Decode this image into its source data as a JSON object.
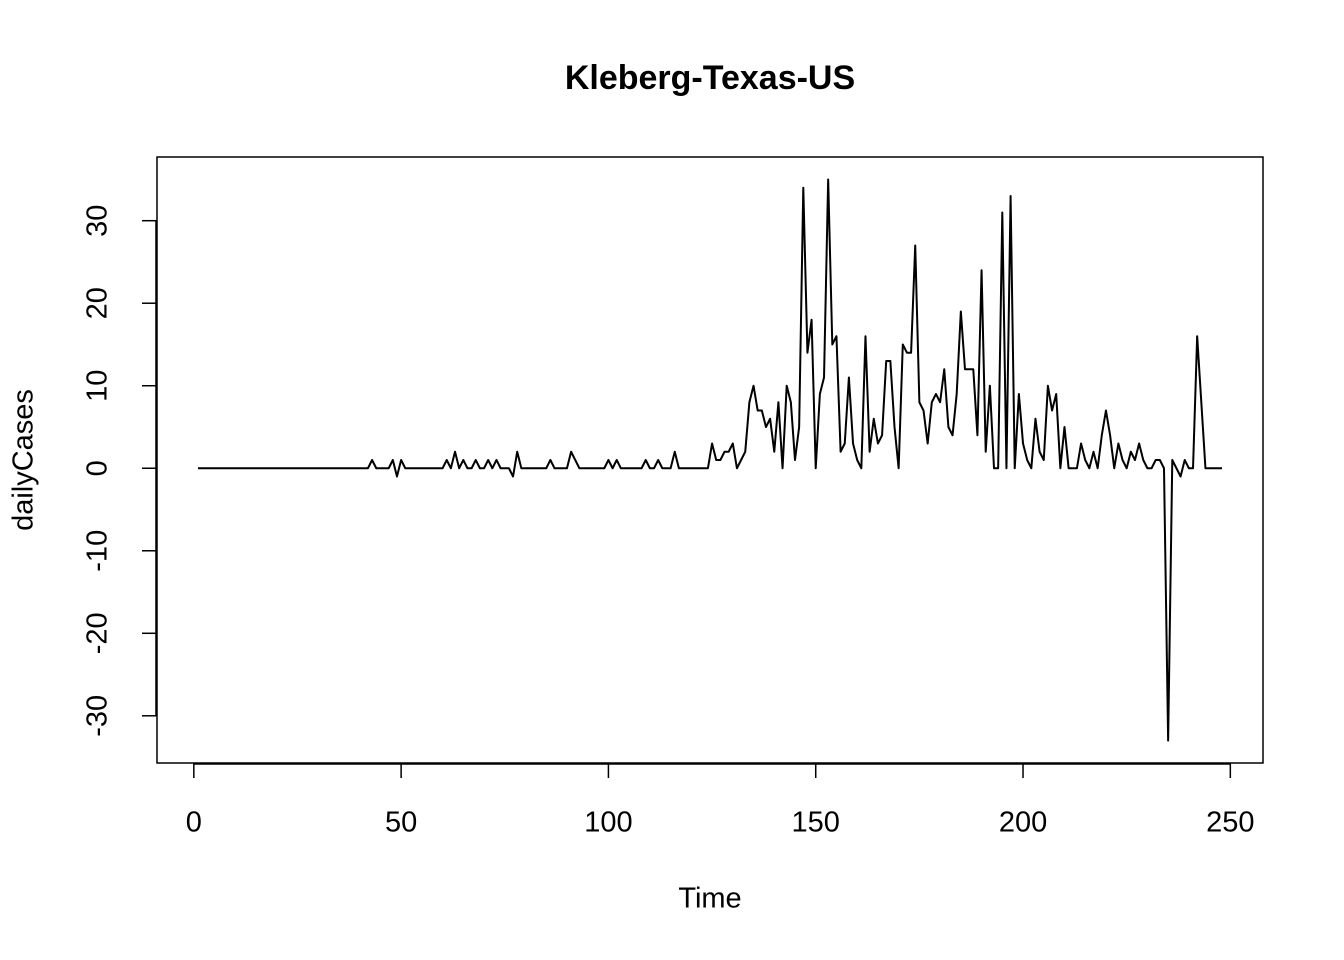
{
  "chart_data": {
    "type": "line",
    "title": "Kleberg-Texas-US",
    "xlabel": "Time",
    "ylabel": "dailyCases",
    "x": [
      1,
      2,
      3,
      4,
      5,
      6,
      7,
      8,
      9,
      10,
      11,
      12,
      13,
      14,
      15,
      16,
      17,
      18,
      19,
      20,
      21,
      22,
      23,
      24,
      25,
      26,
      27,
      28,
      29,
      30,
      31,
      32,
      33,
      34,
      35,
      36,
      37,
      38,
      39,
      40,
      41,
      42,
      43,
      44,
      45,
      46,
      47,
      48,
      49,
      50,
      51,
      52,
      53,
      54,
      55,
      56,
      57,
      58,
      59,
      60,
      61,
      62,
      63,
      64,
      65,
      66,
      67,
      68,
      69,
      70,
      71,
      72,
      73,
      74,
      75,
      76,
      77,
      78,
      79,
      80,
      81,
      82,
      83,
      84,
      85,
      86,
      87,
      88,
      89,
      90,
      91,
      92,
      93,
      94,
      95,
      96,
      97,
      98,
      99,
      100,
      101,
      102,
      103,
      104,
      105,
      106,
      107,
      108,
      109,
      110,
      111,
      112,
      113,
      114,
      115,
      116,
      117,
      118,
      119,
      120,
      121,
      122,
      123,
      124,
      125,
      126,
      127,
      128,
      129,
      130,
      131,
      132,
      133,
      134,
      135,
      136,
      137,
      138,
      139,
      140,
      141,
      142,
      143,
      144,
      145,
      146,
      147,
      148,
      149,
      150,
      151,
      152,
      153,
      154,
      155,
      156,
      157,
      158,
      159,
      160,
      161,
      162,
      163,
      164,
      165,
      166,
      167,
      168,
      169,
      170,
      171,
      172,
      173,
      174,
      175,
      176,
      177,
      178,
      179,
      180,
      181,
      182,
      183,
      184,
      185,
      186,
      187,
      188,
      189,
      190,
      191,
      192,
      193,
      194,
      195,
      196,
      197,
      198,
      199,
      200,
      201,
      202,
      203,
      204,
      205,
      206,
      207,
      208,
      209,
      210,
      211,
      212,
      213,
      214,
      215,
      216,
      217,
      218,
      219,
      220,
      221,
      222,
      223,
      224,
      225,
      226,
      227,
      228,
      229,
      230,
      231,
      232,
      233,
      234,
      235,
      236,
      237,
      238,
      239,
      240,
      241,
      242,
      243,
      244,
      245,
      246,
      247,
      248
    ],
    "series": [
      {
        "name": "dailyCases",
        "color": "#000000",
        "values": [
          0,
          0,
          0,
          0,
          0,
          0,
          0,
          0,
          0,
          0,
          0,
          0,
          0,
          0,
          0,
          0,
          0,
          0,
          0,
          0,
          0,
          0,
          0,
          0,
          0,
          0,
          0,
          0,
          0,
          0,
          0,
          0,
          0,
          0,
          0,
          0,
          0,
          0,
          0,
          0,
          0,
          0,
          1,
          0,
          0,
          0,
          0,
          1,
          -1,
          1,
          0,
          0,
          0,
          0,
          0,
          0,
          0,
          0,
          0,
          0,
          1,
          0,
          2,
          0,
          1,
          0,
          0,
          1,
          0,
          0,
          1,
          0,
          1,
          0,
          0,
          0,
          -1,
          2,
          0,
          0,
          0,
          0,
          0,
          0,
          0,
          1,
          0,
          0,
          0,
          0,
          2,
          1,
          0,
          0,
          0,
          0,
          0,
          0,
          0,
          1,
          0,
          1,
          0,
          0,
          0,
          0,
          0,
          0,
          1,
          0,
          0,
          1,
          0,
          0,
          0,
          2,
          0,
          0,
          0,
          0,
          0,
          0,
          0,
          0,
          3,
          1,
          1,
          2,
          2,
          3,
          0,
          1,
          2,
          8,
          10,
          7,
          7,
          5,
          6,
          2,
          8,
          0,
          10,
          8,
          1,
          5,
          34,
          14,
          18,
          0,
          9,
          11,
          35,
          15,
          16,
          2,
          3,
          11,
          3,
          1,
          0,
          16,
          2,
          6,
          3,
          4,
          13,
          13,
          5,
          0,
          15,
          14,
          14,
          27,
          8,
          7,
          3,
          8,
          9,
          8,
          12,
          5,
          4,
          9,
          19,
          12,
          12,
          12,
          4,
          24,
          2,
          10,
          0,
          0,
          31,
          0,
          33,
          0,
          9,
          3,
          1,
          0,
          6,
          2,
          1,
          10,
          7,
          9,
          0,
          5,
          0,
          0,
          0,
          3,
          1,
          0,
          2,
          0,
          4,
          7,
          4,
          0,
          3,
          1,
          0,
          2,
          1,
          3,
          1,
          0,
          0,
          1,
          1,
          0,
          -33,
          1,
          0,
          -1,
          1,
          0,
          0,
          16,
          8,
          0,
          0,
          0,
          0,
          0
        ]
      }
    ],
    "xlim": [
      -8.88,
      257.88
    ],
    "ylim": [
      -35.72,
      37.72
    ],
    "xticks": [
      0,
      50,
      100,
      150,
      200,
      250
    ],
    "yticks": [
      -30,
      -20,
      -10,
      0,
      10,
      20,
      30
    ],
    "grid": false
  }
}
